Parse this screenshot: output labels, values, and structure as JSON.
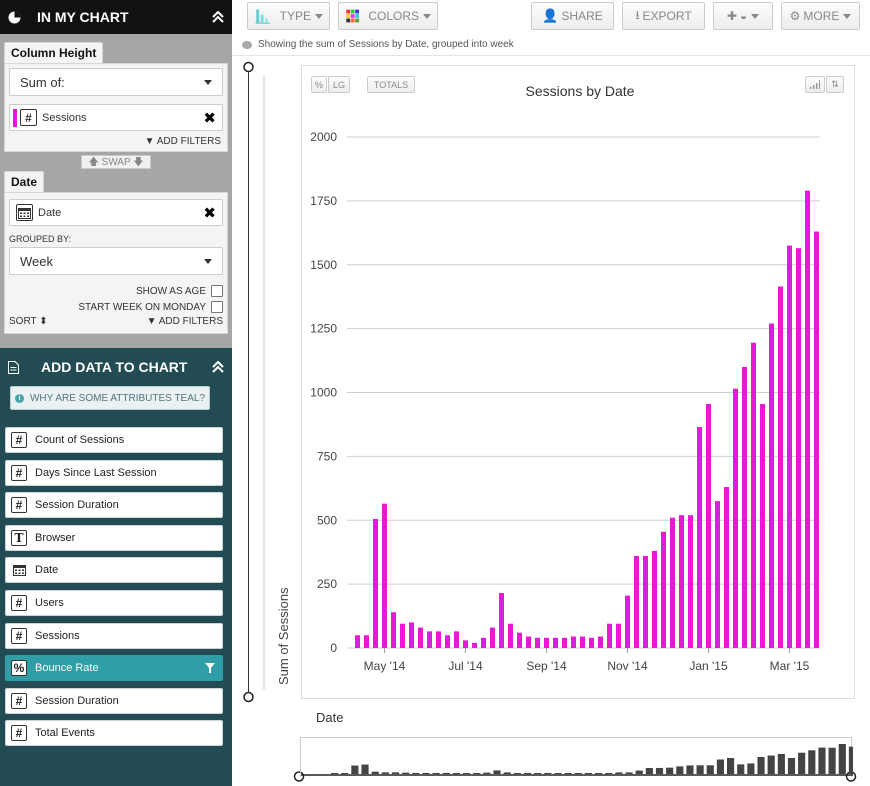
{
  "left_panel": {
    "title": "IN MY CHART",
    "column_height_tab": "Column Height",
    "sum_select": "Sum of:",
    "measure_label": "Sessions",
    "add_filters": "ADD FILTERS",
    "swap": "SWAP",
    "date_tab": "Date",
    "date_label": "Date",
    "grouped_by_label": "GROUPED BY:",
    "group_select": "Week",
    "show_as_age": "SHOW AS AGE",
    "start_week_monday": "START WEEK ON MONDAY",
    "sort": "SORT",
    "add_filters2": "ADD FILTERS"
  },
  "add_data": {
    "title": "ADD DATA TO CHART",
    "why_teal": "WHY ARE SOME ATTRIBUTES TEAL?",
    "attributes": [
      {
        "label": "Count of Sessions",
        "icon": "#",
        "teal": false
      },
      {
        "label": "Days Since Last Session",
        "icon": "#",
        "teal": false
      },
      {
        "label": "Session Duration",
        "icon": "#",
        "teal": false
      },
      {
        "label": "Browser",
        "icon": "T",
        "teal": false
      },
      {
        "label": "Date",
        "icon": "calendar",
        "teal": false
      },
      {
        "label": "Users",
        "icon": "#",
        "teal": false
      },
      {
        "label": "Sessions",
        "icon": "#",
        "teal": false
      },
      {
        "label": "Bounce Rate",
        "icon": "%",
        "teal": true
      },
      {
        "label": "Session Duration",
        "icon": "#",
        "teal": false
      },
      {
        "label": "Total Events",
        "icon": "#",
        "teal": false
      }
    ]
  },
  "toolbar": {
    "type": "TYPE",
    "colors": "COLORS",
    "share": "SHARE",
    "export": "EXPORT",
    "more": "MORE"
  },
  "subheader": "Showing the sum of Sessions by Date, grouped into week",
  "chart_buttons": {
    "pct": "%",
    "lg": "LG",
    "totals": "TOTALS"
  },
  "x_axis_title": "Date",
  "colors": {
    "bar": "#e619d6",
    "mini_bar": "#444444",
    "teal": "#2f9ea7",
    "sidebar_dark": "#234b53"
  },
  "chart_data": {
    "type": "bar",
    "title": "Sessions by Date",
    "ylabel": "Sum of Sessions",
    "xlabel": "",
    "ylim": [
      0,
      2000
    ],
    "yticks": [
      0,
      250,
      500,
      750,
      1000,
      1250,
      1500,
      1750,
      2000
    ],
    "xtick_labels": [
      "May '14",
      "Jul '14",
      "Sep '14",
      "Nov '14",
      "Jan '15",
      "Mar '15"
    ],
    "xtick_bar_index": [
      3,
      12,
      21,
      30,
      39,
      48
    ],
    "grid": true,
    "legend": "none",
    "series": [
      {
        "values": [
          50,
          50,
          505,
          565,
          140,
          95,
          100,
          80,
          65,
          65,
          50,
          65,
          30,
          20,
          40,
          80,
          215,
          95,
          60,
          45,
          40,
          40,
          40,
          40,
          45,
          45,
          40,
          45,
          95,
          95,
          205,
          360,
          360,
          380,
          455,
          510,
          520,
          520,
          865,
          955,
          575,
          630,
          1015,
          1100,
          1195,
          955,
          1270,
          1415,
          1575,
          1565,
          1790,
          1630
        ]
      }
    ]
  }
}
